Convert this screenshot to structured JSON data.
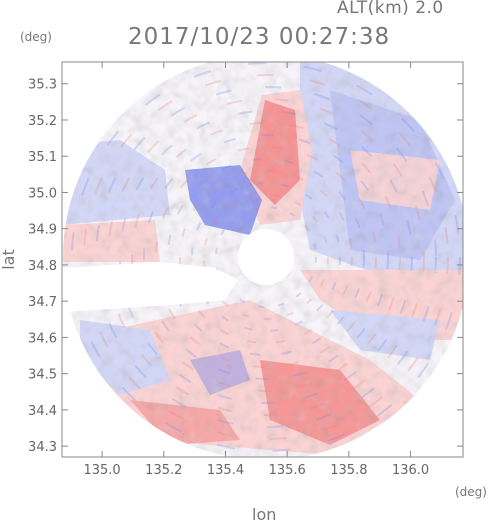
{
  "header": {
    "altitude_label": "ALT(km)  2.0",
    "timestamp": "2017/10/23 00:27:38"
  },
  "axes": {
    "x_label": "lon",
    "y_label": "lat",
    "x_unit": "(deg)",
    "y_unit": "(deg)",
    "x_ticks": [
      "135.0",
      "135.2",
      "135.4",
      "135.6",
      "135.8",
      "136.0"
    ],
    "y_ticks": [
      "35.3",
      "35.2",
      "35.1",
      "35.0",
      "34.9",
      "34.8",
      "34.7",
      "34.6",
      "34.5",
      "34.4",
      "34.3"
    ],
    "x_range": [
      134.87,
      136.17
    ],
    "y_range": [
      34.27,
      35.36
    ]
  },
  "map": {
    "type": "radar-ppi",
    "center": {
      "lon": 135.53,
      "lat": 34.82
    },
    "colors": {
      "positive": "#f47c7c",
      "positive_light": "#fbd3d3",
      "negative": "#7b86ec",
      "negative_light": "#d2d7f7",
      "frame": "#888888"
    }
  }
}
